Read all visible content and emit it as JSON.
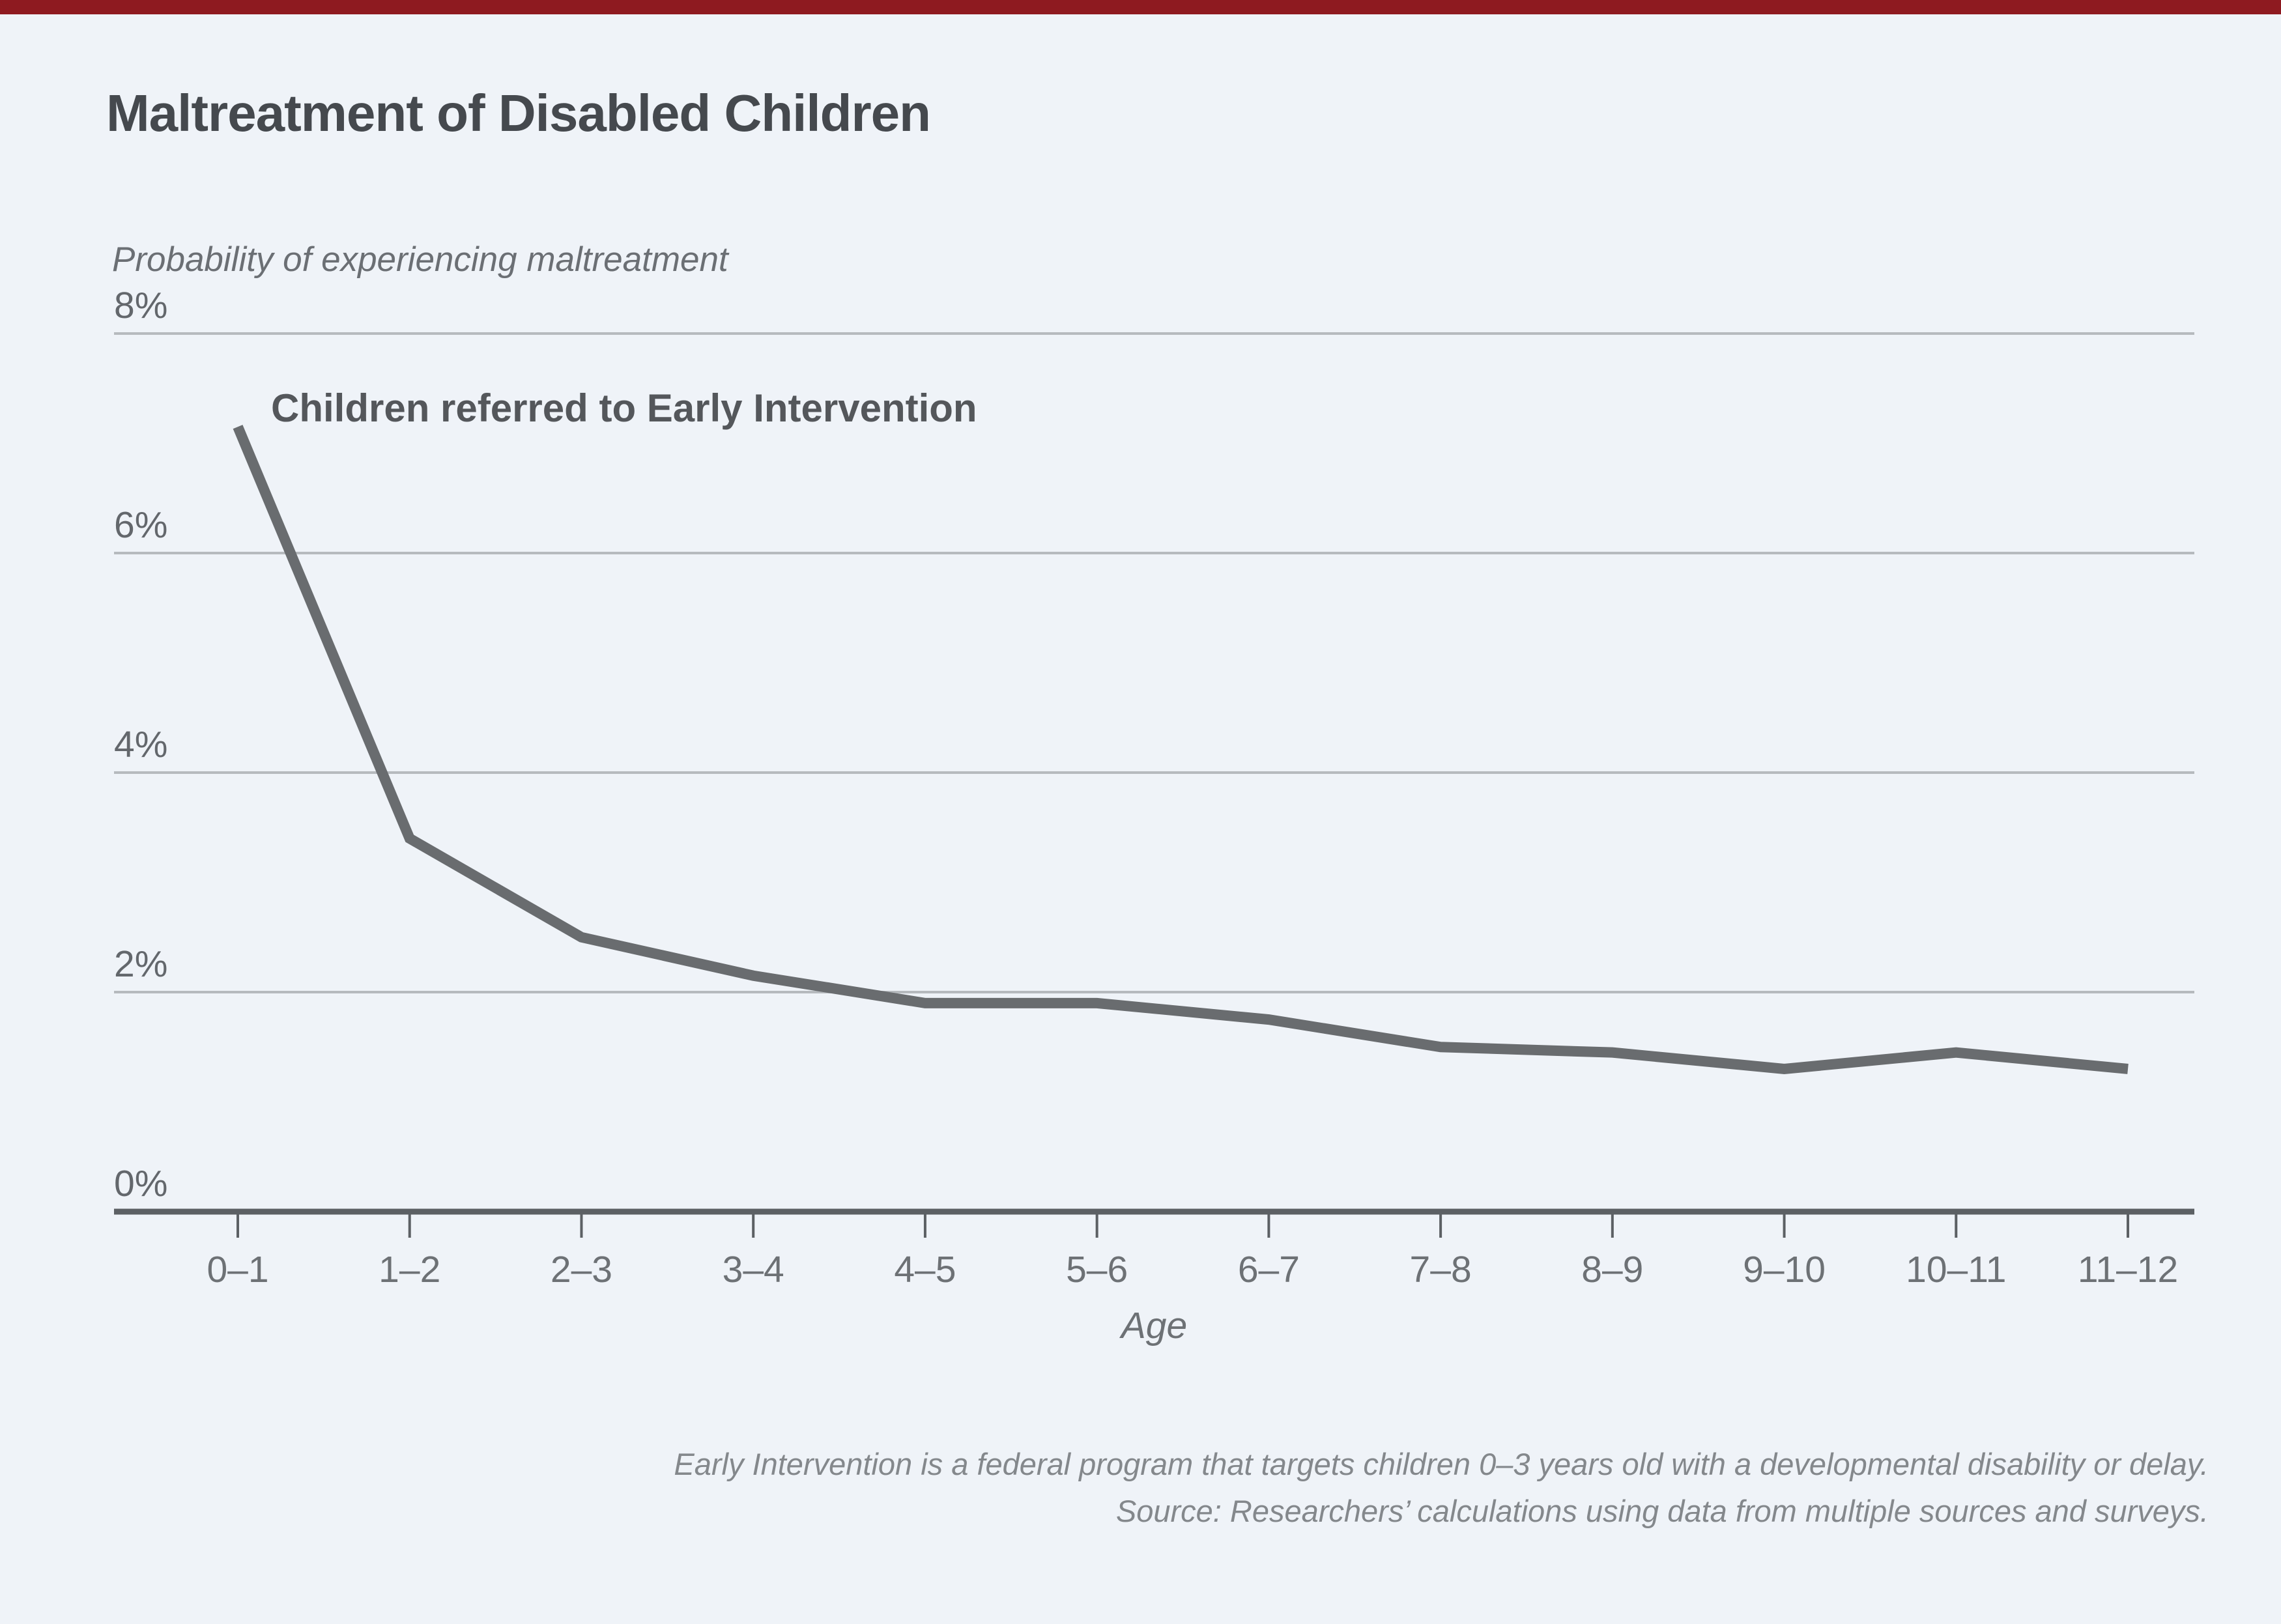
{
  "page": {
    "background_color": "#eff3f8",
    "accent_bar_color": "#8e1a20"
  },
  "chart_data": {
    "type": "line",
    "title": "Maltreatment of Disabled Children",
    "ylabel": "Probability of experiencing maltreatment",
    "xlabel": "Age",
    "series": [
      {
        "name": "Children referred to Early Intervention",
        "values": [
          7.15,
          3.4,
          2.5,
          2.15,
          1.9,
          1.9,
          1.75,
          1.5,
          1.45,
          1.3,
          1.45,
          1.3
        ]
      }
    ],
    "categories": [
      "0–1",
      "1–2",
      "2–3",
      "3–4",
      "4–5",
      "5–6",
      "6–7",
      "7–8",
      "8–9",
      "9–10",
      "10–11",
      "11–12"
    ],
    "y_ticks": [
      {
        "label": "0%",
        "value": 0
      },
      {
        "label": "2%",
        "value": 2
      },
      {
        "label": "4%",
        "value": 4
      },
      {
        "label": "6%",
        "value": 6
      },
      {
        "label": "8%",
        "value": 8
      }
    ],
    "ylim": [
      0,
      8
    ],
    "grid": "horizontal",
    "legend_position": "annotation-above-line",
    "line_color": "#696c6f",
    "gridline_color": "#b6babe",
    "axis_color": "#5c6064",
    "unit": "percent"
  },
  "footnote": {
    "line1": "Early Intervention is a federal program that targets children 0–3 years old with a developmental disability or delay.",
    "line2": "Source: Researchers’ calculations using data from multiple sources and surveys."
  }
}
